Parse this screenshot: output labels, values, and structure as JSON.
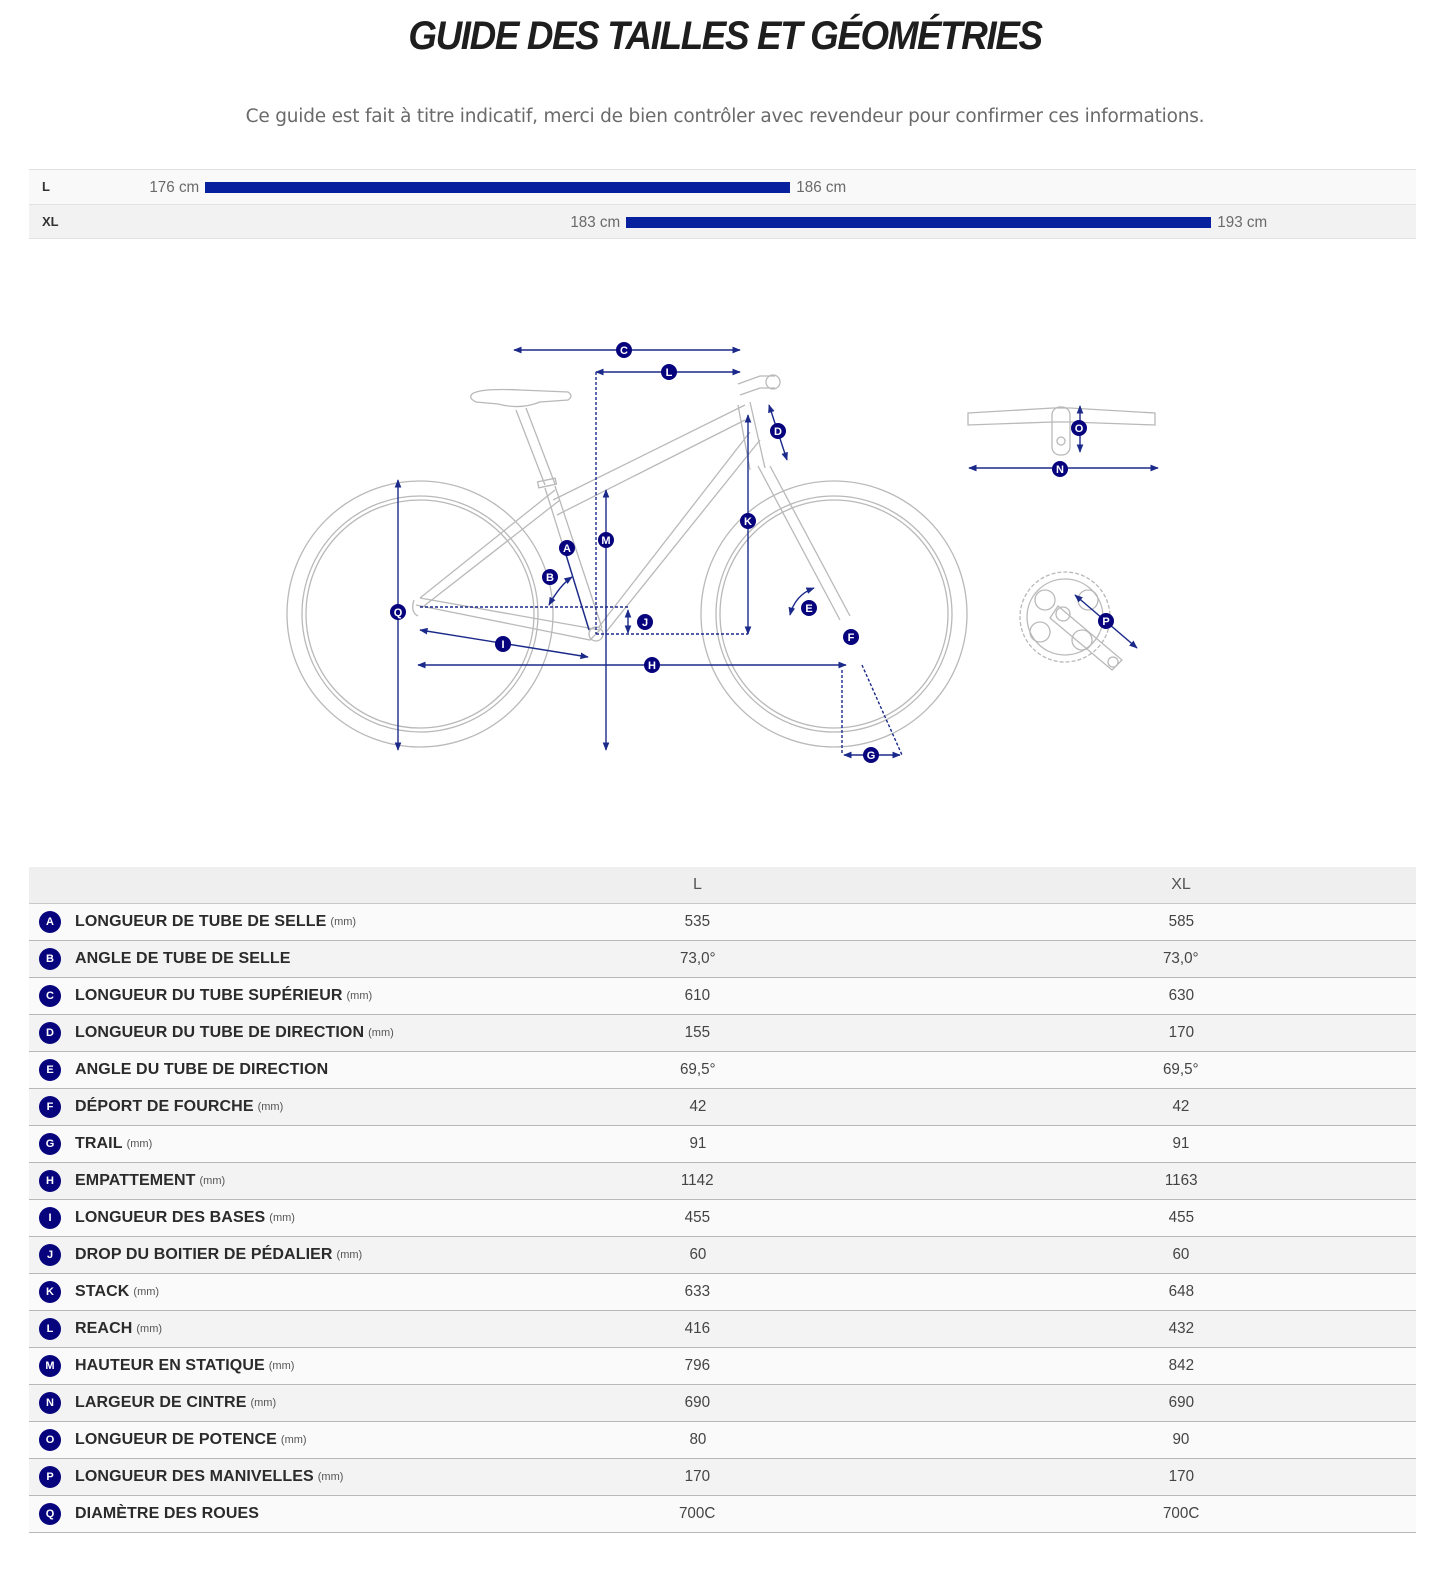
{
  "header": {
    "title": "GUIDE DES TAILLES ET GÉOMÉTRIES",
    "subtitle": "Ce guide est fait à titre indicatif, merci de bien contrôler avec revendeur pour confirmer ces informations."
  },
  "size_chart": {
    "bar_color": "#06209e",
    "rows": [
      {
        "size": "L",
        "min": "176 cm",
        "max": "186 cm"
      },
      {
        "size": "XL",
        "min": "183 cm",
        "max": "193 cm"
      }
    ]
  },
  "diagram": {
    "accent_color": "#1b2a8a",
    "markers": [
      "A",
      "B",
      "C",
      "D",
      "E",
      "F",
      "G",
      "H",
      "I",
      "J",
      "K",
      "L",
      "M",
      "N",
      "O",
      "P",
      "Q"
    ]
  },
  "geometry_table": {
    "columns": [
      "",
      "L",
      "XL"
    ],
    "rows": [
      {
        "key": "A",
        "label": "LONGUEUR DE TUBE DE SELLE",
        "unit": "(mm)",
        "L": "535",
        "XL": "585"
      },
      {
        "key": "B",
        "label": "ANGLE DE TUBE DE SELLE",
        "unit": "",
        "L": "73,0°",
        "XL": "73,0°"
      },
      {
        "key": "C",
        "label": "LONGUEUR DU TUBE SUPÉRIEUR",
        "unit": "(mm)",
        "L": "610",
        "XL": "630"
      },
      {
        "key": "D",
        "label": "LONGUEUR DU TUBE DE DIRECTION",
        "unit": "(mm)",
        "L": "155",
        "XL": "170"
      },
      {
        "key": "E",
        "label": "ANGLE DU TUBE DE DIRECTION",
        "unit": "",
        "L": "69,5°",
        "XL": "69,5°"
      },
      {
        "key": "F",
        "label": "DÉPORT DE FOURCHE",
        "unit": "(mm)",
        "L": "42",
        "XL": "42"
      },
      {
        "key": "G",
        "label": "TRAIL",
        "unit": "(mm)",
        "L": "91",
        "XL": "91"
      },
      {
        "key": "H",
        "label": "EMPATTEMENT",
        "unit": "(mm)",
        "L": "1142",
        "XL": "1163"
      },
      {
        "key": "I",
        "label": "LONGUEUR DES BASES",
        "unit": "(mm)",
        "L": "455",
        "XL": "455"
      },
      {
        "key": "J",
        "label": "DROP DU BOITIER DE PÉDALIER",
        "unit": "(mm)",
        "L": "60",
        "XL": "60"
      },
      {
        "key": "K",
        "label": "STACK",
        "unit": "(mm)",
        "L": "633",
        "XL": "648"
      },
      {
        "key": "L",
        "label": "REACH",
        "unit": "(mm)",
        "L": "416",
        "XL": "432"
      },
      {
        "key": "M",
        "label": "HAUTEUR EN STATIQUE",
        "unit": "(mm)",
        "L": "796",
        "XL": "842"
      },
      {
        "key": "N",
        "label": "LARGEUR DE CINTRE",
        "unit": "(mm)",
        "L": "690",
        "XL": "690"
      },
      {
        "key": "O",
        "label": "LONGUEUR DE POTENCE",
        "unit": "(mm)",
        "L": "80",
        "XL": "90"
      },
      {
        "key": "P",
        "label": "LONGUEUR DES MANIVELLES",
        "unit": "(mm)",
        "L": "170",
        "XL": "170"
      },
      {
        "key": "Q",
        "label": "DIAMÈTRE DES ROUES",
        "unit": "",
        "L": "700C",
        "XL": "700C"
      }
    ]
  }
}
